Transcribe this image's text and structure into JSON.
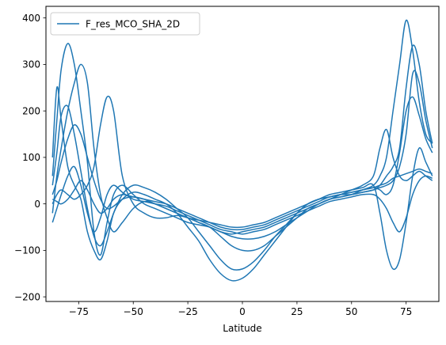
{
  "chart_data": {
    "type": "line",
    "title": "",
    "xlabel": "Latitude",
    "ylabel": "",
    "xlim": [
      -90,
      90
    ],
    "ylim": [
      -210,
      425
    ],
    "grid": false,
    "legend": {
      "placement": "top-left",
      "entries": [
        "F_res_MCO_SHA_2D"
      ]
    },
    "x_ticks": [
      -75,
      -50,
      -25,
      0,
      25,
      50,
      75
    ],
    "x_tick_labels": [
      "−75",
      "−50",
      "−25",
      "0",
      "25",
      "50",
      "75"
    ],
    "y_ticks": [
      -200,
      -100,
      0,
      100,
      200,
      300,
      400
    ],
    "y_tick_labels": [
      "−200",
      "−100",
      "0",
      "100",
      "200",
      "300",
      "400"
    ],
    "colors": {
      "line": "#1f77b4"
    },
    "series": [
      {
        "name": "F_res_MCO_SHA_2D",
        "x": [
          -87,
          -85,
          -83,
          -80,
          -77,
          -74,
          -71,
          -68,
          -65,
          -62,
          -59,
          -55,
          -50,
          -45,
          -40,
          -35,
          -30,
          -25,
          -20,
          -15,
          -10,
          -5,
          0,
          5,
          10,
          15,
          20,
          25,
          30,
          35,
          40,
          45,
          50,
          55,
          60,
          63,
          66,
          69,
          72,
          75,
          78,
          81,
          84,
          87
        ],
        "values": [
          60,
          180,
          290,
          345,
          300,
          200,
          90,
          -60,
          -110,
          -40,
          20,
          40,
          20,
          0,
          -10,
          -20,
          -30,
          -40,
          -45,
          -50,
          -60,
          -65,
          -60,
          -55,
          -50,
          -40,
          -30,
          -20,
          -10,
          0,
          10,
          15,
          20,
          30,
          40,
          60,
          100,
          200,
          300,
          395,
          330,
          220,
          150,
          130
        ]
      },
      {
        "x": [
          -87,
          -85,
          -83,
          -80,
          -77,
          -74,
          -71,
          -68,
          -65,
          -62,
          -59,
          -55,
          -50,
          -45,
          -40,
          -35,
          -30,
          -25,
          -20,
          -15,
          -10,
          -5,
          0,
          5,
          10,
          15,
          20,
          25,
          30,
          35,
          40,
          45,
          50,
          55,
          60,
          63,
          66,
          69,
          72,
          75,
          78,
          81,
          84,
          87
        ],
        "values": [
          100,
          250,
          180,
          80,
          40,
          10,
          -60,
          -100,
          -120,
          -80,
          -20,
          10,
          25,
          20,
          10,
          0,
          -20,
          -50,
          -80,
          -120,
          -150,
          -165,
          -160,
          -140,
          -110,
          -80,
          -50,
          -20,
          0,
          10,
          15,
          20,
          20,
          25,
          30,
          40,
          60,
          80,
          120,
          250,
          340,
          300,
          200,
          130
        ]
      },
      {
        "x": [
          -87,
          -85,
          -83,
          -80,
          -77,
          -74,
          -71,
          -68,
          -65,
          -62,
          -59,
          -55,
          -50,
          -45,
          -40,
          -35,
          -30,
          -25,
          -20,
          -15,
          -10,
          -5,
          0,
          5,
          10,
          15,
          20,
          25,
          30,
          35,
          40,
          45,
          50,
          55,
          60,
          63,
          66,
          69,
          72,
          75,
          78,
          81,
          84,
          87
        ],
        "values": [
          -20,
          60,
          120,
          200,
          260,
          300,
          260,
          120,
          20,
          -30,
          -60,
          -40,
          -10,
          5,
          0,
          -10,
          -20,
          -30,
          -35,
          -40,
          -45,
          -50,
          -50,
          -45,
          -40,
          -30,
          -20,
          -10,
          0,
          10,
          20,
          25,
          30,
          35,
          40,
          -20,
          -100,
          -140,
          -120,
          -40,
          60,
          120,
          90,
          60
        ]
      },
      {
        "x": [
          -87,
          -85,
          -83,
          -80,
          -77,
          -74,
          -71,
          -68,
          -65,
          -62,
          -59,
          -55,
          -50,
          -45,
          -40,
          -35,
          -30,
          -25,
          -20,
          -15,
          -10,
          -5,
          0,
          5,
          10,
          15,
          20,
          25,
          30,
          35,
          40,
          45,
          50,
          55,
          60,
          63,
          66,
          69,
          72,
          75,
          78,
          81,
          84,
          87
        ],
        "values": [
          0,
          20,
          30,
          20,
          10,
          20,
          40,
          80,
          170,
          230,
          200,
          60,
          0,
          -20,
          -30,
          -30,
          -25,
          -30,
          -40,
          -50,
          -70,
          -90,
          -100,
          -100,
          -90,
          -70,
          -50,
          -30,
          -10,
          0,
          10,
          20,
          30,
          40,
          60,
          120,
          160,
          100,
          60,
          50,
          60,
          70,
          60,
          50
        ]
      },
      {
        "x": [
          -87,
          -85,
          -83,
          -80,
          -77,
          -74,
          -71,
          -68,
          -65,
          -62,
          -59,
          -55,
          -50,
          -45,
          -40,
          -35,
          -30,
          -25,
          -20,
          -15,
          -10,
          -5,
          0,
          5,
          10,
          15,
          20,
          25,
          30,
          35,
          40,
          45,
          50,
          55,
          60,
          63,
          66,
          69,
          72,
          75,
          78,
          81,
          84,
          87
        ],
        "values": [
          40,
          110,
          190,
          210,
          150,
          70,
          -10,
          -70,
          -90,
          -60,
          -20,
          20,
          40,
          35,
          25,
          10,
          -10,
          -30,
          -60,
          -90,
          -120,
          -140,
          -140,
          -125,
          -100,
          -70,
          -45,
          -20,
          0,
          10,
          15,
          20,
          25,
          30,
          35,
          30,
          20,
          40,
          110,
          200,
          230,
          190,
          140,
          110
        ]
      },
      {
        "x": [
          -87,
          -85,
          -83,
          -80,
          -77,
          -74,
          -71,
          -68,
          -65,
          -62,
          -59,
          -55,
          -50,
          -45,
          -40,
          -35,
          -30,
          -25,
          -20,
          -15,
          -10,
          -5,
          0,
          5,
          10,
          15,
          20,
          25,
          30,
          35,
          40,
          45,
          50,
          55,
          60,
          63,
          66,
          69,
          72,
          75,
          78,
          81,
          84,
          87
        ],
        "values": [
          -40,
          -10,
          20,
          60,
          80,
          40,
          -20,
          -60,
          -30,
          20,
          40,
          25,
          10,
          5,
          0,
          -5,
          -15,
          -25,
          -35,
          -45,
          -55,
          -60,
          -65,
          -60,
          -55,
          -45,
          -35,
          -25,
          -15,
          -5,
          5,
          10,
          15,
          20,
          20,
          10,
          -10,
          -40,
          -60,
          -30,
          20,
          50,
          60,
          55
        ]
      },
      {
        "x": [
          -87,
          -85,
          -83,
          -80,
          -77,
          -74,
          -71,
          -68,
          -65,
          -62,
          -59,
          -55,
          -50,
          -45,
          -40,
          -35,
          -30,
          -25,
          -20,
          -15,
          -10,
          -5,
          0,
          5,
          10,
          15,
          20,
          25,
          30,
          35,
          40,
          45,
          50,
          55,
          60,
          63,
          66,
          69,
          72,
          75,
          78,
          81,
          84,
          87
        ],
        "values": [
          20,
          50,
          90,
          140,
          170,
          150,
          100,
          50,
          10,
          -10,
          -5,
          10,
          15,
          10,
          0,
          -10,
          -20,
          -30,
          -40,
          -50,
          -60,
          -70,
          -75,
          -75,
          -70,
          -60,
          -45,
          -30,
          -15,
          0,
          10,
          15,
          20,
          25,
          30,
          35,
          40,
          50,
          80,
          150,
          280,
          260,
          180,
          120
        ]
      },
      {
        "x": [
          -87,
          -85,
          -83,
          -80,
          -77,
          -74,
          -71,
          -68,
          -65,
          -62,
          -59,
          -55,
          -50,
          -45,
          -40,
          -35,
          -30,
          -25,
          -20,
          -15,
          -10,
          -5,
          0,
          5,
          10,
          15,
          20,
          25,
          30,
          35,
          40,
          45,
          50,
          55,
          60,
          63,
          66,
          69,
          72,
          75,
          78,
          81,
          84,
          87
        ],
        "values": [
          10,
          5,
          0,
          10,
          30,
          50,
          30,
          0,
          -20,
          -10,
          10,
          20,
          15,
          10,
          5,
          0,
          -10,
          -20,
          -30,
          -40,
          -50,
          -55,
          -55,
          -50,
          -45,
          -35,
          -25,
          -15,
          -5,
          5,
          15,
          20,
          25,
          30,
          35,
          40,
          45,
          55,
          60,
          65,
          70,
          75,
          70,
          65
        ]
      }
    ]
  }
}
